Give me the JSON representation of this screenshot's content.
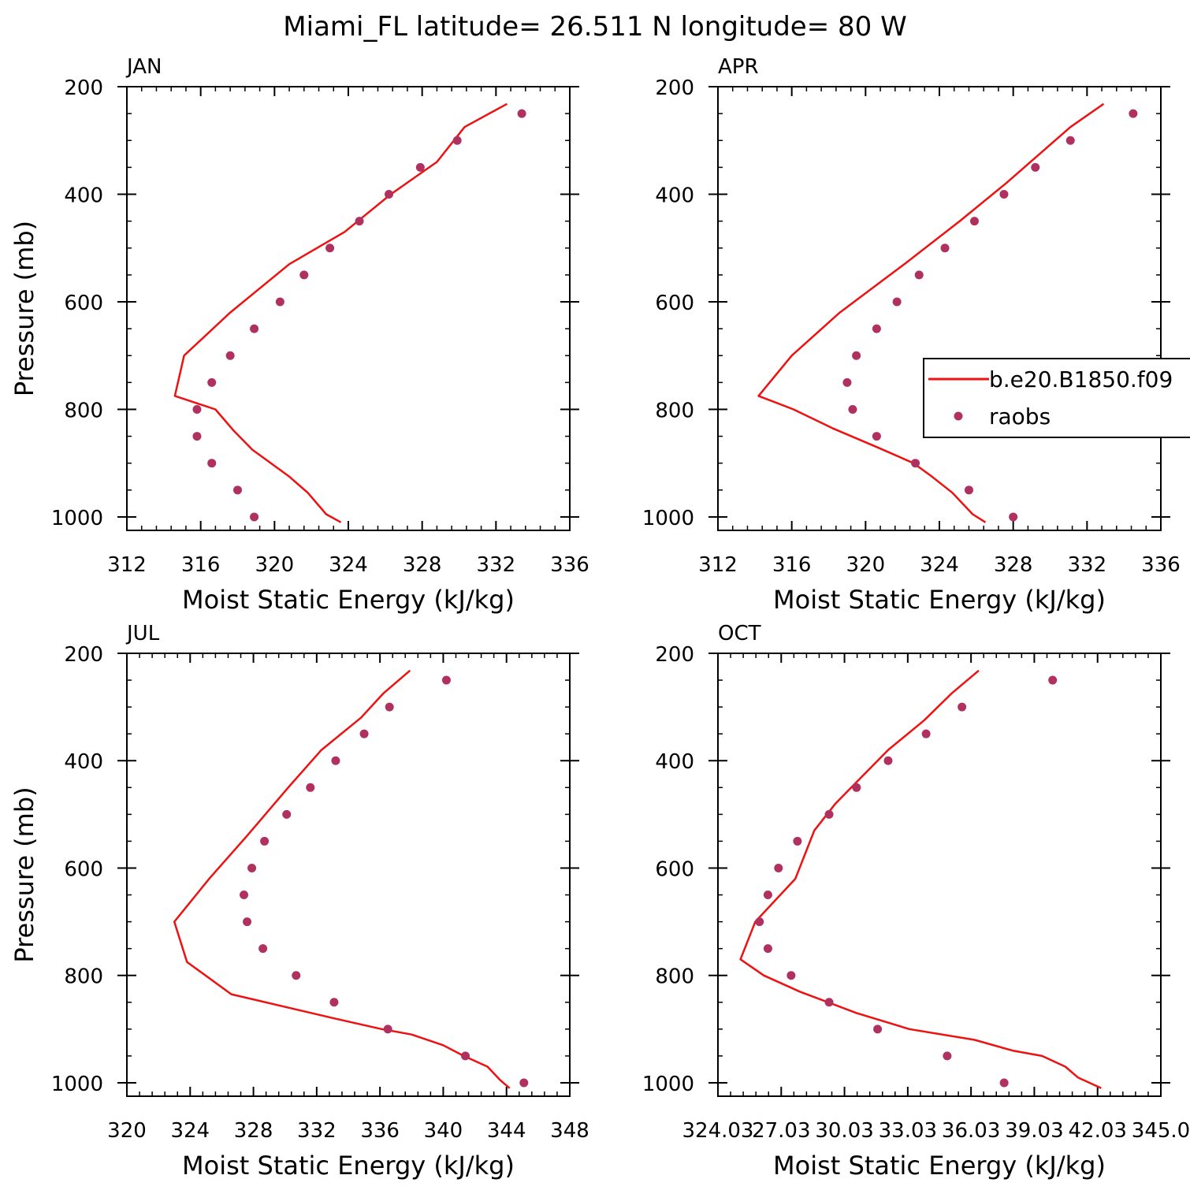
{
  "title": "Miami_FL  latitude= 26.511 N longitude= 80 W",
  "legend": {
    "model_label": "b.e20.B1850.f09",
    "obs_label": "raobs"
  },
  "colors": {
    "model": "#ee1111",
    "obs": "#b03060",
    "axis": "#000000"
  },
  "chart_data": [
    {
      "type": "line",
      "panel": "JAN",
      "xlabel": "Moist Static Energy (kJ/kg)",
      "ylabel": "Pressure (mb)",
      "xlim": [
        312,
        336
      ],
      "ylim": [
        1025,
        200
      ],
      "x_ticks": [
        "312",
        "316",
        "320",
        "324",
        "328",
        "332",
        "336"
      ],
      "y_ticks": [
        "200",
        "400",
        "600",
        "800",
        "1000"
      ],
      "model": {
        "x": [
          323.6,
          322.8,
          321.8,
          320.8,
          318.8,
          317.8,
          316.8,
          314.6,
          315.1,
          317.6,
          320.8,
          323.8,
          326.3,
          328.8,
          330.3,
          332.6
        ],
        "y": [
          1010,
          995,
          955,
          925,
          875,
          840,
          800,
          775,
          700,
          620,
          530,
          470,
          400,
          340,
          275,
          232
        ]
      },
      "obs": {
        "x": [
          318.9,
          318.0,
          316.6,
          315.8,
          315.8,
          316.6,
          317.6,
          318.9,
          320.3,
          321.6,
          323.0,
          324.6,
          326.2,
          327.9,
          329.9,
          333.4
        ],
        "y": [
          1000,
          950,
          900,
          850,
          800,
          750,
          700,
          650,
          600,
          550,
          500,
          450,
          400,
          350,
          300,
          250
        ]
      }
    },
    {
      "type": "line",
      "panel": "APR",
      "xlabel": "Moist Static Energy (kJ/kg)",
      "ylabel": "",
      "xlim": [
        312,
        336
      ],
      "ylim": [
        1025,
        200
      ],
      "x_ticks": [
        "312",
        "316",
        "320",
        "324",
        "328",
        "332",
        "336"
      ],
      "y_ticks": [
        "200",
        "400",
        "600",
        "800",
        "1000"
      ],
      "model": {
        "x": [
          326.5,
          325.8,
          324.7,
          323.6,
          322.6,
          320.6,
          318.2,
          316.1,
          314.2,
          316.0,
          318.6,
          322.1,
          325.1,
          327.6,
          331.1,
          332.9
        ],
        "y": [
          1010,
          995,
          955,
          925,
          900,
          870,
          835,
          800,
          775,
          700,
          620,
          530,
          450,
          380,
          275,
          232
        ]
      },
      "obs": {
        "x": [
          328.0,
          325.6,
          322.7,
          320.6,
          319.3,
          319.0,
          319.5,
          320.6,
          321.7,
          322.9,
          324.3,
          325.9,
          327.5,
          329.2,
          331.1,
          334.5
        ],
        "y": [
          1000,
          950,
          900,
          850,
          800,
          750,
          700,
          650,
          600,
          550,
          500,
          450,
          400,
          350,
          300,
          250
        ]
      }
    },
    {
      "type": "line",
      "panel": "JUL",
      "xlabel": "Moist Static Energy (kJ/kg)",
      "ylabel": "Pressure (mb)",
      "xlim": [
        320,
        348
      ],
      "ylim": [
        1025,
        200
      ],
      "x_ticks": [
        "320",
        "324",
        "328",
        "332",
        "336",
        "340",
        "344",
        "348"
      ],
      "y_ticks": [
        "200",
        "400",
        "600",
        "800",
        "1000"
      ],
      "model": {
        "x": [
          344.2,
          343.6,
          342.8,
          341.3,
          340.0,
          338.0,
          336.1,
          333.1,
          326.6,
          323.8,
          323.0,
          325.2,
          327.6,
          330.2,
          332.3,
          334.8,
          336.2,
          337.9
        ],
        "y": [
          1010,
          995,
          970,
          950,
          930,
          910,
          900,
          880,
          835,
          775,
          700,
          620,
          540,
          450,
          380,
          320,
          275,
          232
        ]
      },
      "obs": {
        "x": [
          345.1,
          341.4,
          336.5,
          333.1,
          330.7,
          328.6,
          327.6,
          327.4,
          327.9,
          328.7,
          330.1,
          331.6,
          333.2,
          335.0,
          336.6,
          340.2
        ],
        "y": [
          1000,
          950,
          900,
          850,
          800,
          750,
          700,
          650,
          600,
          550,
          500,
          450,
          400,
          350,
          300,
          250
        ]
      }
    },
    {
      "type": "line",
      "panel": "OCT",
      "xlabel": "Moist Static Energy (kJ/kg)",
      "ylabel": "",
      "xlim": [
        324.03,
        345.03
      ],
      "ylim": [
        1025,
        200
      ],
      "x_ticks": [
        "324.03",
        "27.03",
        "30.03",
        "33.03",
        "36.03",
        "39.03",
        "42.03",
        "345.0"
      ],
      "y_ticks": [
        "200",
        "400",
        "600",
        "800",
        "1000"
      ],
      "model": {
        "x": [
          342.2,
          341.1,
          340.5,
          339.4,
          338.0,
          336.2,
          333.1,
          330.6,
          327.9,
          326.2,
          325.1,
          325.8,
          327.7,
          328.6,
          329.6,
          330.6,
          332.1,
          333.8,
          335.1,
          336.4
        ],
        "y": [
          1010,
          990,
          970,
          950,
          940,
          920,
          900,
          870,
          830,
          800,
          770,
          700,
          620,
          530,
          480,
          440,
          380,
          325,
          275,
          232
        ]
      },
      "obs": {
        "x": [
          337.6,
          334.9,
          331.6,
          329.3,
          327.5,
          326.4,
          326.0,
          326.4,
          326.9,
          327.8,
          329.3,
          330.6,
          332.1,
          333.9,
          335.6,
          339.9
        ],
        "y": [
          1000,
          950,
          900,
          850,
          800,
          750,
          700,
          650,
          600,
          550,
          500,
          450,
          400,
          350,
          300,
          250
        ]
      }
    }
  ]
}
